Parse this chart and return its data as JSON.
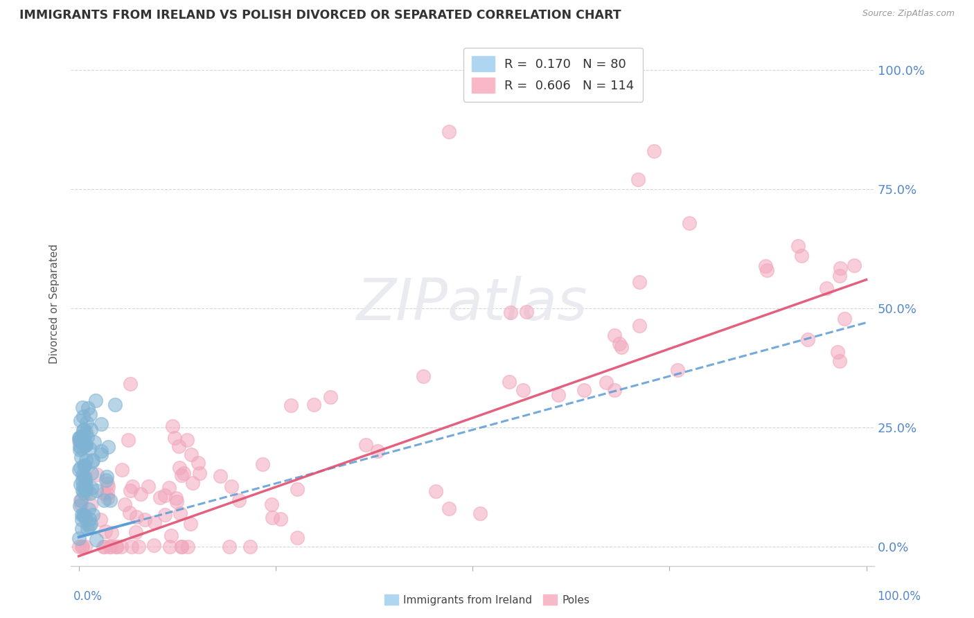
{
  "title": "IMMIGRANTS FROM IRELAND VS POLISH DIVORCED OR SEPARATED CORRELATION CHART",
  "source": "Source: ZipAtlas.com",
  "ylabel": "Divorced or Separated",
  "ytick_labels": [
    "0.0%",
    "25.0%",
    "50.0%",
    "75.0%",
    "100.0%"
  ],
  "ytick_values": [
    0.0,
    0.25,
    0.5,
    0.75,
    1.0
  ],
  "legend_entries": [
    {
      "label": "R =  0.170   N = 80",
      "color": "#aed6f1"
    },
    {
      "label": "R =  0.606   N = 114",
      "color": "#f9b8c8"
    }
  ],
  "legend_labels_bottom": [
    "Immigrants from Ireland",
    "Poles"
  ],
  "blue_scatter_color": "#7fb3d3",
  "pink_scatter_color": "#f1a7bc",
  "blue_line_color": "#5b9bd5",
  "pink_line_color": "#e05070",
  "watermark_color": "#e8e8f0",
  "background_color": "#ffffff",
  "grid_color": "#cccccc",
  "R_blue": 0.17,
  "N_blue": 80,
  "R_pink": 0.606,
  "N_pink": 114,
  "blue_line_intercept": 0.02,
  "blue_line_slope": 0.45,
  "pink_line_intercept": -0.02,
  "pink_line_slope": 0.58
}
